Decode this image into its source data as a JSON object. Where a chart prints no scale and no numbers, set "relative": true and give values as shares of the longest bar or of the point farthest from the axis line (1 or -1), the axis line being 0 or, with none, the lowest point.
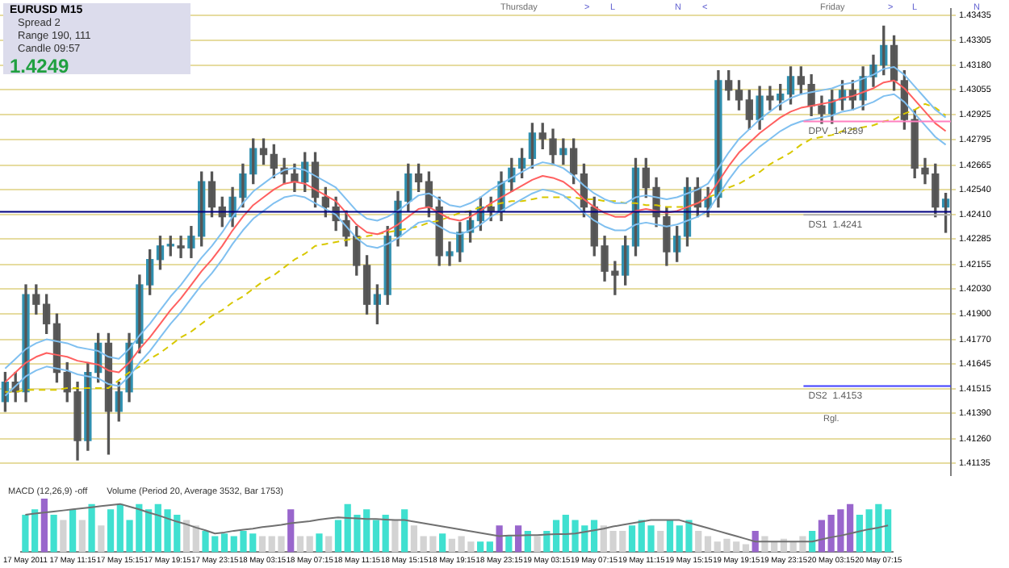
{
  "chart_data": [
    {
      "type": "candlestick",
      "title": "EURUSD  M15",
      "annotations": [
        "Spread  2",
        "Range  190, 111",
        "Candle  09:57",
        "1.4249",
        "Thursday",
        ">",
        "L",
        "N",
        "<",
        "Friday",
        ">",
        "L",
        "N",
        "Rgl."
      ],
      "categories": [
        null,
        null,
        null,
        null,
        null,
        null,
        null,
        null,
        null,
        null,
        null,
        null,
        null,
        null,
        null,
        null,
        null,
        null,
        null,
        null,
        null,
        null,
        null,
        null,
        null,
        null,
        null,
        null,
        null,
        null,
        null,
        null,
        null,
        null,
        null,
        null,
        null,
        null,
        null,
        null,
        null,
        null,
        null,
        null,
        null,
        null,
        null,
        null,
        null,
        null,
        null,
        null,
        null,
        null,
        null,
        null,
        null,
        null,
        null,
        null,
        null,
        null,
        null,
        null,
        null,
        null,
        null,
        null,
        null,
        null,
        null,
        null,
        null,
        null,
        null,
        null,
        null,
        null,
        null,
        null,
        null,
        null,
        null,
        null,
        null,
        null,
        null,
        null,
        null,
        null,
        null,
        null
      ],
      "ohlc": [
        [
          1.4145,
          1.416,
          1.414,
          1.4155
        ],
        [
          1.4155,
          1.416,
          1.4145,
          1.415
        ],
        [
          1.415,
          1.4205,
          1.4145,
          1.42
        ],
        [
          1.42,
          1.4205,
          1.419,
          1.4195
        ],
        [
          1.4195,
          1.42,
          1.418,
          1.4185
        ],
        [
          1.4185,
          1.419,
          1.4155,
          1.416
        ],
        [
          1.416,
          1.4165,
          1.4145,
          1.415
        ],
        [
          1.415,
          1.4155,
          1.4115,
          1.4125
        ],
        [
          1.4125,
          1.4165,
          1.412,
          1.416
        ],
        [
          1.416,
          1.418,
          1.4155,
          1.4175
        ],
        [
          1.4175,
          1.418,
          1.4118,
          1.414
        ],
        [
          1.414,
          1.4155,
          1.4135,
          1.415
        ],
        [
          1.415,
          1.418,
          1.4145,
          1.4175
        ],
        [
          1.4175,
          1.421,
          1.417,
          1.4205
        ],
        [
          1.4205,
          1.4223,
          1.42,
          1.4218
        ],
        [
          1.4218,
          1.423,
          1.4213,
          1.4225
        ],
        [
          1.4225,
          1.423,
          1.422,
          1.4225
        ],
        [
          1.4225,
          1.423,
          1.4219,
          1.4224
        ],
        [
          1.4224,
          1.4235,
          1.4219,
          1.423
        ],
        [
          1.423,
          1.4263,
          1.4225,
          1.4258
        ],
        [
          1.4258,
          1.4263,
          1.424,
          1.4245
        ],
        [
          1.4245,
          1.425,
          1.4235,
          1.424
        ],
        [
          1.424,
          1.4255,
          1.4235,
          1.425
        ],
        [
          1.425,
          1.4267,
          1.4245,
          1.4262
        ],
        [
          1.4262,
          1.428,
          1.4257,
          1.4275
        ],
        [
          1.4275,
          1.428,
          1.4267,
          1.4272
        ],
        [
          1.4272,
          1.4277,
          1.426,
          1.4265
        ],
        [
          1.4265,
          1.427,
          1.4257,
          1.4262
        ],
        [
          1.4262,
          1.4267,
          1.4253,
          1.4258
        ],
        [
          1.4258,
          1.4273,
          1.4253,
          1.4268
        ],
        [
          1.4268,
          1.4273,
          1.4245,
          1.425
        ],
        [
          1.425,
          1.4255,
          1.424,
          1.4245
        ],
        [
          1.4245,
          1.425,
          1.4233,
          1.4238
        ],
        [
          1.4238,
          1.4243,
          1.4225,
          1.423
        ],
        [
          1.423,
          1.4235,
          1.421,
          1.4215
        ],
        [
          1.4215,
          1.422,
          1.419,
          1.4195
        ],
        [
          1.4195,
          1.4205,
          1.4185,
          1.42
        ],
        [
          1.42,
          1.4235,
          1.4195,
          1.423
        ],
        [
          1.423,
          1.4253,
          1.4225,
          1.4248
        ],
        [
          1.4248,
          1.4267,
          1.4243,
          1.4262
        ],
        [
          1.4262,
          1.4267,
          1.4253,
          1.4258
        ],
        [
          1.4258,
          1.4263,
          1.424,
          1.4245
        ],
        [
          1.4245,
          1.425,
          1.4215,
          1.422
        ],
        [
          1.422,
          1.4227,
          1.4215,
          1.4222
        ],
        [
          1.4222,
          1.4237,
          1.4217,
          1.4232
        ],
        [
          1.4232,
          1.4243,
          1.4227,
          1.4238
        ],
        [
          1.4238,
          1.425,
          1.4233,
          1.4245
        ],
        [
          1.4245,
          1.425,
          1.4238,
          1.4243
        ],
        [
          1.4243,
          1.4263,
          1.4238,
          1.4258
        ],
        [
          1.4258,
          1.427,
          1.4253,
          1.4265
        ],
        [
          1.4265,
          1.4275,
          1.426,
          1.427
        ],
        [
          1.427,
          1.4288,
          1.4265,
          1.4283
        ],
        [
          1.4283,
          1.4288,
          1.4275,
          1.428
        ],
        [
          1.428,
          1.4285,
          1.4267,
          1.4272
        ],
        [
          1.4272,
          1.428,
          1.4267,
          1.4275
        ],
        [
          1.4275,
          1.428,
          1.4257,
          1.4262
        ],
        [
          1.4262,
          1.4267,
          1.424,
          1.4245
        ],
        [
          1.4245,
          1.425,
          1.422,
          1.4225
        ],
        [
          1.4225,
          1.423,
          1.4207,
          1.4212
        ],
        [
          1.4212,
          1.4217,
          1.42,
          1.421
        ],
        [
          1.421,
          1.423,
          1.4205,
          1.4225
        ],
        [
          1.4225,
          1.427,
          1.422,
          1.4265
        ],
        [
          1.4265,
          1.427,
          1.425,
          1.4255
        ],
        [
          1.4255,
          1.426,
          1.4235,
          1.424
        ],
        [
          1.424,
          1.4245,
          1.4215,
          1.4222
        ],
        [
          1.4222,
          1.4235,
          1.4217,
          1.423
        ],
        [
          1.423,
          1.426,
          1.4225,
          1.4255
        ],
        [
          1.4255,
          1.426,
          1.424,
          1.4245
        ],
        [
          1.4245,
          1.4255,
          1.424,
          1.425
        ],
        [
          1.425,
          1.4315,
          1.4245,
          1.431
        ],
        [
          1.431,
          1.4315,
          1.43,
          1.4305
        ],
        [
          1.4305,
          1.431,
          1.4295,
          1.43
        ],
        [
          1.43,
          1.4305,
          1.4285,
          1.429
        ],
        [
          1.429,
          1.4307,
          1.4285,
          1.4302
        ],
        [
          1.4302,
          1.4307,
          1.4295,
          1.43
        ],
        [
          1.43,
          1.4308,
          1.4295,
          1.4303
        ],
        [
          1.4303,
          1.4317,
          1.4298,
          1.4312
        ],
        [
          1.4312,
          1.4317,
          1.4303,
          1.4308
        ],
        [
          1.4308,
          1.4313,
          1.4292,
          1.4297
        ],
        [
          1.4297,
          1.4302,
          1.4288,
          1.4293
        ],
        [
          1.4293,
          1.4305,
          1.4288,
          1.43
        ],
        [
          1.43,
          1.431,
          1.4295,
          1.4305
        ],
        [
          1.4305,
          1.431,
          1.4295,
          1.43
        ],
        [
          1.43,
          1.4317,
          1.4295,
          1.4312
        ],
        [
          1.4312,
          1.4323,
          1.4307,
          1.4318
        ],
        [
          1.4318,
          1.4338,
          1.4313,
          1.4328
        ],
        [
          1.4328,
          1.4333,
          1.4305,
          1.431
        ],
        [
          1.431,
          1.4315,
          1.4285,
          1.429
        ],
        [
          1.429,
          1.4295,
          1.426,
          1.4265
        ],
        [
          1.4265,
          1.427,
          1.4257,
          1.4262
        ],
        [
          1.4262,
          1.4267,
          1.424,
          1.4245
        ],
        [
          1.4245,
          1.4252,
          1.4232,
          1.4249
        ]
      ],
      "series": [
        {
          "type": "line",
          "color": "#80c0f0",
          "values": [
            1.4162,
            1.4167,
            1.4172,
            1.4175,
            1.4177,
            1.4176,
            1.4175,
            1.4173,
            1.4172,
            1.4171,
            1.4168,
            1.4167,
            1.4172,
            1.4179,
            1.4185,
            1.4192,
            1.4199,
            1.4205,
            1.4212,
            1.4219,
            1.4225,
            1.4232,
            1.424,
            1.4247,
            1.4253,
            1.4257,
            1.4261,
            1.4264,
            1.4265,
            1.4264,
            1.4261,
            1.4258,
            1.4255,
            1.4249,
            1.4243,
            1.4239,
            1.4238,
            1.424,
            1.4243,
            1.4247,
            1.4251,
            1.4252,
            1.4249,
            1.4246,
            1.4245,
            1.4247,
            1.425,
            1.4254,
            1.4257,
            1.426,
            1.4263,
            1.4266,
            1.4268,
            1.4267,
            1.4265,
            1.4261,
            1.4256,
            1.4252,
            1.4249,
            1.4247,
            1.4247,
            1.425,
            1.4251,
            1.425,
            1.4249,
            1.425,
            1.4252,
            1.4254,
            1.4257,
            1.4265,
            1.4273,
            1.428,
            1.4285,
            1.429,
            1.4294,
            1.4298,
            1.4301,
            1.4303,
            1.4304,
            1.4305,
            1.4306,
            1.4308,
            1.4309,
            1.4311,
            1.4313,
            1.4316,
            1.4317,
            1.4313,
            1.4307,
            1.4301,
            1.4295,
            1.4291
          ]
        },
        {
          "type": "line",
          "color": "#ff6060",
          "values": [
            1.4155,
            1.416,
            1.4165,
            1.4168,
            1.417,
            1.4169,
            1.4168,
            1.4166,
            1.4165,
            1.4164,
            1.4161,
            1.416,
            1.4165,
            1.4172,
            1.4178,
            1.4185,
            1.4192,
            1.4198,
            1.4205,
            1.4212,
            1.4218,
            1.4225,
            1.4233,
            1.424,
            1.4246,
            1.425,
            1.4254,
            1.4257,
            1.4258,
            1.4257,
            1.4254,
            1.4251,
            1.4248,
            1.4242,
            1.4236,
            1.4232,
            1.4231,
            1.4233,
            1.4236,
            1.424,
            1.4244,
            1.4245,
            1.4242,
            1.4239,
            1.4238,
            1.424,
            1.4243,
            1.4247,
            1.425,
            1.4253,
            1.4256,
            1.4259,
            1.4261,
            1.426,
            1.4258,
            1.4254,
            1.4249,
            1.4245,
            1.4242,
            1.424,
            1.424,
            1.4243,
            1.4244,
            1.4243,
            1.4242,
            1.4243,
            1.4245,
            1.4247,
            1.425,
            1.4258,
            1.4266,
            1.4273,
            1.4278,
            1.4283,
            1.4287,
            1.4291,
            1.4294,
            1.4296,
            1.4297,
            1.4298,
            1.4299,
            1.4301,
            1.4302,
            1.4304,
            1.4306,
            1.4309,
            1.431,
            1.4306,
            1.43,
            1.4294,
            1.4288,
            1.4284
          ]
        },
        {
          "type": "line",
          "color": "#80c0f0",
          "values": [
            1.4148,
            1.4153,
            1.4158,
            1.4161,
            1.4163,
            1.4162,
            1.4161,
            1.4159,
            1.4158,
            1.4157,
            1.4154,
            1.4153,
            1.4158,
            1.4165,
            1.4171,
            1.4178,
            1.4185,
            1.4191,
            1.4198,
            1.4205,
            1.4211,
            1.4218,
            1.4226,
            1.4233,
            1.4239,
            1.4243,
            1.4247,
            1.425,
            1.4251,
            1.425,
            1.4247,
            1.4244,
            1.4241,
            1.4235,
            1.4229,
            1.4225,
            1.4224,
            1.4226,
            1.4229,
            1.4233,
            1.4237,
            1.4238,
            1.4235,
            1.4232,
            1.4231,
            1.4233,
            1.4236,
            1.424,
            1.4243,
            1.4246,
            1.4249,
            1.4252,
            1.4254,
            1.4253,
            1.4251,
            1.4247,
            1.4242,
            1.4238,
            1.4235,
            1.4233,
            1.4233,
            1.4236,
            1.4237,
            1.4236,
            1.4235,
            1.4236,
            1.4238,
            1.424,
            1.4243,
            1.4251,
            1.4259,
            1.4266,
            1.4271,
            1.4276,
            1.428,
            1.4284,
            1.4287,
            1.4289,
            1.429,
            1.4291,
            1.4292,
            1.4294,
            1.4295,
            1.4297,
            1.4299,
            1.4302,
            1.4303,
            1.4299,
            1.4293,
            1.4287,
            1.4281,
            1.4277
          ]
        },
        {
          "type": "line",
          "color": "#d8c800",
          "line_style": "dashed",
          "values": [
            1.415,
            1.415,
            1.4151,
            1.4151,
            1.4151,
            1.4151,
            1.4152,
            1.4152,
            1.4152,
            1.4152,
            1.4152,
            1.4156,
            1.416,
            1.4163,
            1.4167,
            1.417,
            1.4174,
            1.4178,
            1.4181,
            1.4185,
            1.4189,
            1.4192,
            1.4196,
            1.4199,
            1.4203,
            1.4207,
            1.421,
            1.4214,
            1.4218,
            1.4221,
            1.4225,
            1.4226,
            1.4227,
            1.4228,
            1.4229,
            1.423,
            1.4231,
            1.4232,
            1.4233,
            1.4234,
            1.4235,
            1.4237,
            1.4238,
            1.424,
            1.4242,
            1.4243,
            1.4245,
            1.4246,
            1.4247,
            1.4248,
            1.4248,
            1.4249,
            1.425,
            1.425,
            1.425,
            1.425,
            1.4249,
            1.4249,
            1.4248,
            1.4248,
            1.4247,
            1.4247,
            1.4246,
            1.4246,
            1.4245,
            1.4245,
            1.4245,
            1.4247,
            1.425,
            1.4252,
            1.4255,
            1.4257,
            1.426,
            1.4263,
            1.4267,
            1.427,
            1.4273,
            1.4277,
            1.428,
            1.4281,
            1.4282,
            1.4284,
            1.4285,
            1.4286,
            1.4287,
            1.4289,
            1.429,
            1.4293,
            1.4295,
            1.4298,
            1.4296,
            1.4292
          ]
        }
      ],
      "ylim": [
        1.4107,
        1.4347
      ],
      "yticks": [
        1.43435,
        1.43305,
        {
          "value": 1.4318,
          "label": "1.43180"
        },
        1.43055,
        1.42925,
        1.42795,
        1.42665,
        {
          "value": 1.4254,
          "label": "1.42540"
        },
        {
          "value": 1.4241,
          "label": "1.42410"
        },
        1.42285,
        1.42155,
        {
          "value": 1.4203,
          "label": "1.42030"
        },
        {
          "value": 1.419,
          "label": "1.41900"
        },
        {
          "value": 1.4177,
          "label": "1.41770"
        },
        1.41645,
        1.41515,
        {
          "value": 1.4139,
          "label": "1.41390"
        },
        {
          "value": 1.4126,
          "label": "1.41260"
        },
        1.41135
      ],
      "grid": "y",
      "ref_lines": [
        {
          "axis": "y",
          "value": 1.42425,
          "color": "#000080"
        },
        {
          "axis": "y",
          "value": 1.4289,
          "label": "DPV  1.4289",
          "color": "#ff80c0"
        },
        {
          "axis": "y",
          "value": 1.4241,
          "label": "DS1  1.4241",
          "color": "#b0b0b0"
        },
        {
          "axis": "y",
          "value": 1.4153,
          "label": "DS2  1.4153",
          "color": "#4040ff"
        }
      ],
      "tick_labels": "y"
    },
    {
      "type": "bar",
      "relative": true,
      "annotations": [
        "MACD (12,26,9) -off",
        "Volume (Period 20, Average 3532, Bar 1753)"
      ],
      "categories": [
        "17 May 2011",
        null,
        null,
        null,
        null,
        "17 May 11:15",
        null,
        null,
        null,
        null,
        "17 May 15:15",
        null,
        null,
        null,
        null,
        "17 May 19:15",
        null,
        null,
        null,
        null,
        "17 May 23:15",
        null,
        null,
        null,
        null,
        "18 May 03:15",
        null,
        null,
        null,
        null,
        "18 May 07:15",
        null,
        null,
        null,
        null,
        "18 May 11:15",
        null,
        null,
        null,
        null,
        "18 May 15:15",
        null,
        null,
        null,
        null,
        "18 May 19:15",
        null,
        null,
        null,
        null,
        "18 May 23:15",
        null,
        null,
        null,
        null,
        "19 May 03:15",
        null,
        null,
        null,
        null,
        "19 May 07:15",
        null,
        null,
        null,
        null,
        "19 May 11:15",
        null,
        null,
        null,
        null,
        "19 May 15:15",
        null,
        null,
        null,
        null,
        "19 May 19:15",
        null,
        null,
        null,
        null,
        "19 May 23:15",
        null,
        null,
        null,
        null,
        "20 May 03:15",
        null,
        null,
        null,
        null,
        "20 May 07:15",
        null
      ],
      "series": [
        {
          "type": "bar",
          "values": [
            0.7,
            0.8,
            1,
            0.7,
            0.6,
            0.8,
            0.6,
            0.9,
            0.5,
            0.8,
            0.9,
            0.6,
            0.9,
            0.8,
            0.9,
            0.8,
            0.7,
            0.6,
            0.5,
            0.4,
            0.3,
            0.35,
            0.3,
            0.4,
            0.35,
            0.3,
            0.3,
            0.3,
            0.8,
            0.3,
            0.3,
            0.35,
            0.3,
            0.6,
            0.9,
            0.7,
            0.8,
            0.6,
            0.7,
            0.6,
            0.8,
            0.5,
            0.3,
            0.3,
            0.35,
            0.25,
            0.3,
            0.2,
            0.2,
            0.2,
            0.5,
            0.3,
            0.5,
            0.4,
            0.3,
            0.4,
            0.6,
            0.7,
            0.6,
            0.5,
            0.6,
            0.5,
            0.4,
            0.4,
            0.5,
            0.6,
            0.5,
            0.4,
            0.6,
            0.5,
            0.6,
            0.4,
            0.3,
            0.2,
            0.25,
            0.2,
            0.15,
            0.4,
            0.3,
            0.2,
            0.25,
            0.2,
            0.3,
            0.4,
            0.6,
            0.7,
            0.8,
            0.9,
            0.7,
            0.8,
            0.9,
            0.8
          ],
          "colors": [
            "#40e0d0",
            "#40e0d0",
            "#9966cc",
            "#40e0d0",
            "#d3d3d3",
            "#40e0d0",
            "#d3d3d3",
            "#40e0d0",
            "#d3d3d3",
            "#40e0d0",
            "#40e0d0",
            "#40e0d0",
            "#40e0d0",
            "#40e0d0",
            "#40e0d0",
            "#40e0d0",
            "#40e0d0",
            "#d3d3d3",
            "#d3d3d3",
            "#40e0d0",
            "#40e0d0",
            "#40e0d0",
            "#40e0d0",
            "#40e0d0",
            "#40e0d0",
            "#d3d3d3",
            "#d3d3d3",
            "#d3d3d3",
            "#9966cc",
            "#d3d3d3",
            "#d3d3d3",
            "#40e0d0",
            "#d3d3d3",
            "#40e0d0",
            "#40e0d0",
            "#40e0d0",
            "#40e0d0",
            "#40e0d0",
            "#40e0d0",
            "#d3d3d3",
            "#40e0d0",
            "#d3d3d3",
            "#d3d3d3",
            "#d3d3d3",
            "#40e0d0",
            "#d3d3d3",
            "#d3d3d3",
            "#d3d3d3",
            "#40e0d0",
            "#40e0d0",
            "#9966cc",
            "#40e0d0",
            "#9966cc",
            "#40e0d0",
            "#d3d3d3",
            "#40e0d0",
            "#40e0d0",
            "#40e0d0",
            "#40e0d0",
            "#40e0d0",
            "#40e0d0",
            "#d3d3d3",
            "#d3d3d3",
            "#d3d3d3",
            "#40e0d0",
            "#40e0d0",
            "#40e0d0",
            "#d3d3d3",
            "#40e0d0",
            "#40e0d0",
            "#40e0d0",
            "#d3d3d3",
            "#d3d3d3",
            "#d3d3d3",
            "#d3d3d3",
            "#d3d3d3",
            "#d3d3d3",
            "#9966cc",
            "#d3d3d3",
            "#d3d3d3",
            "#d3d3d3",
            "#d3d3d3",
            "#d3d3d3",
            "#40e0d0",
            "#9966cc",
            "#9966cc",
            "#9966cc",
            "#9966cc",
            "#40e0d0",
            "#40e0d0",
            "#40e0d0",
            "#40e0d0"
          ]
        },
        {
          "type": "line",
          "color": "#707070",
          "values": [
            0.7,
            0.72,
            0.74,
            0.76,
            0.78,
            0.8,
            0.82,
            0.84,
            0.86,
            0.88,
            0.9,
            0.85,
            0.8,
            0.74,
            0.69,
            0.63,
            0.57,
            0.52,
            0.46,
            0.41,
            0.35,
            0.37,
            0.4,
            0.42,
            0.44,
            0.47,
            0.49,
            0.51,
            0.54,
            0.56,
            0.58,
            0.61,
            0.63,
            0.65,
            0.64,
            0.63,
            0.62,
            0.62,
            0.61,
            0.6,
            0.6,
            0.57,
            0.54,
            0.51,
            0.48,
            0.45,
            0.42,
            0.39,
            0.36,
            0.33,
            0.3,
            0.31,
            0.31,
            0.32,
            0.32,
            0.33,
            0.34,
            0.34,
            0.35,
            0.38,
            0.41,
            0.44,
            0.48,
            0.51,
            0.54,
            0.57,
            0.6,
            0.6,
            0.6,
            0.6,
            0.55,
            0.5,
            0.45,
            0.4,
            0.35,
            0.3,
            0.25,
            0.2,
            0.2,
            0.2,
            0.2,
            0.2,
            0.2,
            0.2,
            0.24,
            0.28,
            0.31,
            0.35,
            0.39,
            0.43,
            0.46,
            0.5
          ]
        }
      ],
      "tick_labels": "x"
    }
  ]
}
